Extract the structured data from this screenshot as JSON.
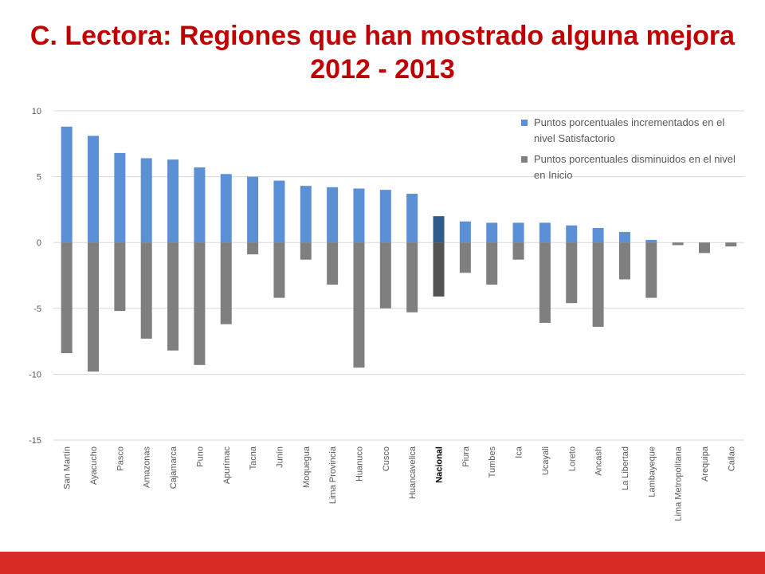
{
  "title": {
    "line1": "C. Lectora: Regiones que han mostrado alguna mejora",
    "line2": "2012 - 2013"
  },
  "colors": {
    "title": "#c00000",
    "increase": "#5b8fd6",
    "decrease": "#7f7f7f",
    "nacional_increase": "#2e5a8c",
    "nacional_decrease": "#545454",
    "footer": "#d92b26",
    "grid": "#d9d9d9",
    "tick_text": "#595959"
  },
  "chart_data": {
    "type": "bar",
    "ylim": [
      -15,
      10
    ],
    "yticks": [
      "10",
      "5",
      "0",
      "-5",
      "-10",
      "-15"
    ],
    "ytick_values": [
      10,
      5,
      0,
      -5,
      -10,
      -15
    ],
    "grid": true,
    "legend_position": "top-right",
    "highlight_category": "Nacional",
    "categories": [
      "San Martín",
      "Ayacucho",
      "Pasco",
      "Amazonas",
      "Cajamarca",
      "Puno",
      "Apurímac",
      "Tacna",
      "Junín",
      "Moquegua",
      "Lima Provincia",
      "Huanuco",
      "Cusco",
      "Huancavelica",
      "Nacional",
      "Piura",
      "Tumbes",
      "Ica",
      "Ucayali",
      "Loreto",
      "Ancash",
      "La Libertad",
      "Lambayeque",
      "Lima Metropolitana",
      "Arequipa",
      "Callao"
    ],
    "series": [
      {
        "name": "Puntos porcentuales incrementados en el nivel Satisfactorio",
        "values": [
          8.8,
          8.1,
          6.8,
          6.4,
          6.3,
          5.7,
          5.2,
          5.0,
          4.7,
          4.3,
          4.2,
          4.1,
          4.0,
          3.7,
          2.0,
          1.6,
          1.5,
          1.5,
          1.5,
          1.3,
          1.1,
          0.8,
          0.2,
          0,
          0,
          0
        ]
      },
      {
        "name": "Puntos porcentuales disminuidos en el nivel en Inicio",
        "values": [
          -8.4,
          -9.8,
          -5.2,
          -7.3,
          -8.2,
          -9.3,
          -6.2,
          -0.9,
          -4.2,
          -1.3,
          -3.2,
          -9.5,
          -5.0,
          -5.3,
          -4.1,
          -2.3,
          -3.2,
          -1.3,
          -6.1,
          -4.6,
          -6.4,
          -2.8,
          -4.2,
          -0.2,
          -0.8,
          -0.3
        ]
      }
    ]
  }
}
